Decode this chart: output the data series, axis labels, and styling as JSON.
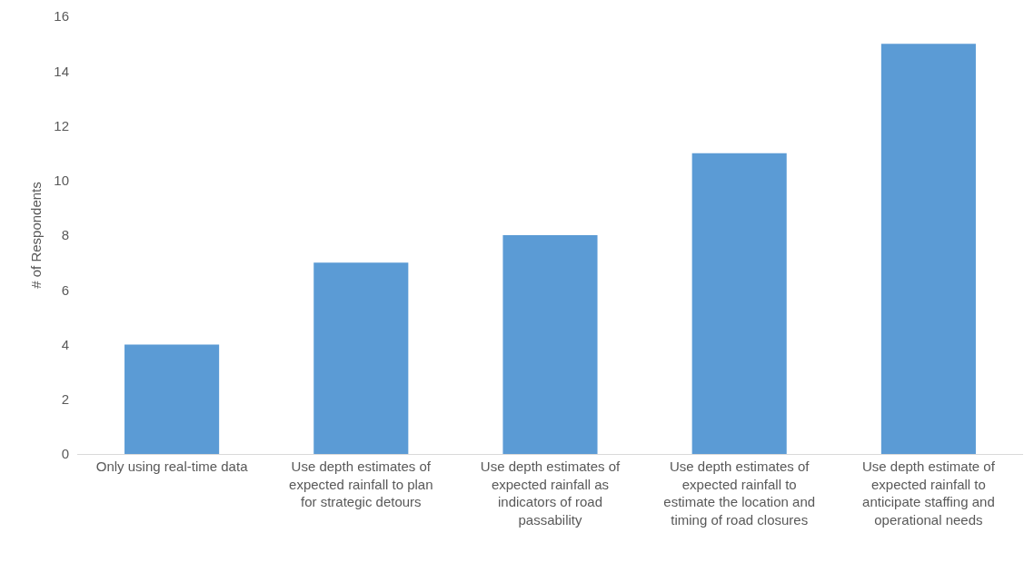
{
  "chart_data": {
    "type": "bar",
    "ylabel": "# of Respondents",
    "categories": [
      "Only using real-time data",
      "Use depth estimates of expected rainfall to plan for strategic detours",
      "Use depth estimates of expected rainfall as indicators of road passability",
      "Use depth estimates of expected rainfall to estimate the location and timing of road closures",
      "Use depth estimate of expected rainfall to anticipate staffing and operational needs"
    ],
    "values": [
      4,
      7,
      8,
      11,
      15
    ],
    "color": "#5b9bd5",
    "ylim": [
      0,
      16
    ],
    "yticks": [
      0,
      2,
      4,
      6,
      8,
      10,
      12,
      14,
      16
    ]
  }
}
